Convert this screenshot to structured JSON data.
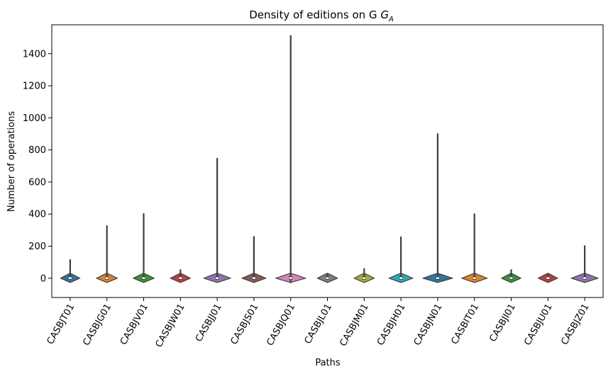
{
  "chart_data": {
    "type": "violin",
    "title": "Density of editions on G",
    "title_subscript": "A",
    "xlabel": "Paths",
    "ylabel": "Number of operations",
    "ylim": [
      -120,
      1580
    ],
    "yticks": [
      0,
      200,
      400,
      600,
      800,
      1000,
      1200,
      1400
    ],
    "grid": false,
    "legend": "none",
    "categories": [
      "CASBJT01",
      "CASBJG01",
      "CASBJV01",
      "CASBJW01",
      "CASBJJ01",
      "CASBJS01",
      "CASBJQ01",
      "CASBJL01",
      "CASBJM01",
      "CASBJH01",
      "CASBJN01",
      "CASBIT01",
      "CASBJI01",
      "CASBJU01",
      "CASBJZ01"
    ],
    "series": [
      {
        "category": "CASBJT01",
        "max": 118,
        "min": -2,
        "density_halfwidth": 0.26,
        "color": "#3274a1"
      },
      {
        "category": "CASBJG01",
        "max": 330,
        "min": -3,
        "density_halfwidth": 0.28,
        "color": "#e1812c"
      },
      {
        "category": "CASBJV01",
        "max": 405,
        "min": -3,
        "density_halfwidth": 0.28,
        "color": "#3a923a"
      },
      {
        "category": "CASBJW01",
        "max": 55,
        "min": -2,
        "density_halfwidth": 0.27,
        "color": "#c03d3e"
      },
      {
        "category": "CASBJJ01",
        "max": 750,
        "min": -5,
        "density_halfwidth": 0.36,
        "color": "#9372b2"
      },
      {
        "category": "CASBJS01",
        "max": 262,
        "min": -4,
        "density_halfwidth": 0.32,
        "color": "#845b53"
      },
      {
        "category": "CASBJQ01",
        "max": 1515,
        "min": -30,
        "density_halfwidth": 0.4,
        "color": "#d684bd"
      },
      {
        "category": "CASBJL01",
        "max": 28,
        "min": -2,
        "density_halfwidth": 0.27,
        "color": "#7f7f7f"
      },
      {
        "category": "CASBJM01",
        "max": 62,
        "min": -2,
        "density_halfwidth": 0.27,
        "color": "#a9aa35"
      },
      {
        "category": "CASBJH01",
        "max": 260,
        "min": -4,
        "density_halfwidth": 0.32,
        "color": "#2ea8b8"
      },
      {
        "category": "CASBJN01",
        "max": 903,
        "min": -12,
        "density_halfwidth": 0.4,
        "color": "#3274a1"
      },
      {
        "category": "CASBIT01",
        "max": 403,
        "min": -5,
        "density_halfwidth": 0.34,
        "color": "#e1812c"
      },
      {
        "category": "CASBJI01",
        "max": 55,
        "min": -2,
        "density_halfwidth": 0.26,
        "color": "#3a923a"
      },
      {
        "category": "CASBJU01",
        "max": 25,
        "min": -2,
        "density_halfwidth": 0.26,
        "color": "#c03d3e"
      },
      {
        "category": "CASBJZ01",
        "max": 205,
        "min": -5,
        "density_halfwidth": 0.36,
        "color": "#9372b2"
      }
    ]
  }
}
